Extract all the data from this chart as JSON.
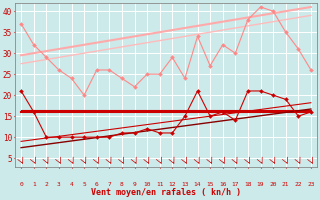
{
  "x": [
    0,
    1,
    2,
    3,
    4,
    5,
    6,
    7,
    8,
    9,
    10,
    11,
    12,
    13,
    14,
    15,
    16,
    17,
    18,
    19,
    20,
    21,
    22,
    23
  ],
  "series": [
    {
      "label": "rafales_data",
      "color": "#ff8888",
      "linewidth": 0.8,
      "marker": "D",
      "markersize": 2.0,
      "values": [
        37,
        32,
        29,
        26,
        24,
        20,
        26,
        26,
        24,
        22,
        25,
        25,
        29,
        24,
        34,
        27,
        32,
        30,
        38,
        41,
        40,
        35,
        31,
        26
      ]
    },
    {
      "label": "rafales_trend_upper",
      "color": "#ffaaaa",
      "linewidth": 1.5,
      "marker": null,
      "values": [
        29.5,
        30.0,
        30.5,
        31.0,
        31.5,
        32.0,
        32.5,
        33.0,
        33.5,
        34.0,
        34.5,
        35.0,
        35.5,
        36.0,
        36.5,
        37.0,
        37.5,
        38.0,
        38.5,
        39.0,
        39.5,
        40.0,
        40.5,
        41.0
      ]
    },
    {
      "label": "rafales_trend_lower",
      "color": "#ffbbbb",
      "linewidth": 1.0,
      "marker": null,
      "values": [
        27.5,
        28.0,
        28.5,
        29.0,
        29.5,
        30.0,
        30.5,
        31.0,
        31.5,
        32.0,
        32.5,
        33.0,
        33.5,
        34.0,
        34.5,
        35.0,
        35.5,
        36.0,
        36.5,
        37.0,
        37.5,
        38.0,
        38.5,
        39.0
      ]
    },
    {
      "label": "vent_flat1",
      "color": "#cc0000",
      "linewidth": 1.5,
      "marker": null,
      "values": [
        16,
        16,
        16,
        16,
        16,
        16,
        16,
        16,
        16,
        16,
        16,
        16,
        16,
        16,
        16,
        16,
        16,
        16,
        16,
        16,
        16,
        16,
        16,
        16
      ]
    },
    {
      "label": "vent_flat2",
      "color": "#cc0000",
      "linewidth": 0.8,
      "marker": null,
      "values": [
        16.5,
        16.5,
        16.5,
        16.5,
        16.5,
        16.5,
        16.5,
        16.5,
        16.5,
        16.5,
        16.5,
        16.5,
        16.5,
        16.5,
        16.5,
        16.5,
        16.5,
        16.5,
        16.5,
        16.5,
        16.5,
        16.5,
        16.5,
        16.5
      ]
    },
    {
      "label": "vent_trend_upper",
      "color": "#cc0000",
      "linewidth": 0.8,
      "marker": null,
      "values": [
        9.0,
        9.4,
        9.8,
        10.2,
        10.6,
        11.0,
        11.4,
        11.8,
        12.2,
        12.6,
        13.0,
        13.4,
        13.8,
        14.2,
        14.6,
        15.0,
        15.4,
        15.8,
        16.2,
        16.6,
        17.0,
        17.4,
        17.8,
        18.2
      ]
    },
    {
      "label": "vent_trend_lower",
      "color": "#880000",
      "linewidth": 1.0,
      "marker": null,
      "values": [
        7.5,
        7.9,
        8.3,
        8.7,
        9.1,
        9.5,
        9.9,
        10.3,
        10.7,
        11.1,
        11.5,
        11.9,
        12.3,
        12.7,
        13.1,
        13.5,
        13.9,
        14.3,
        14.7,
        15.1,
        15.5,
        15.9,
        16.3,
        16.7
      ]
    },
    {
      "label": "vent_data",
      "color": "#cc0000",
      "linewidth": 0.8,
      "marker": "D",
      "markersize": 2.0,
      "values": [
        21,
        16,
        10,
        10,
        10,
        10,
        10,
        10,
        11,
        11,
        12,
        11,
        11,
        15,
        21,
        15,
        16,
        14,
        21,
        21,
        20,
        19,
        15,
        16
      ]
    }
  ],
  "xlabel": "Vent moyen/en rafales ( kn/h )",
  "ylim": [
    3,
    42
  ],
  "yticks": [
    5,
    10,
    15,
    20,
    25,
    30,
    35,
    40
  ],
  "xlim": [
    -0.5,
    23.5
  ],
  "xticks": [
    0,
    1,
    2,
    3,
    4,
    5,
    6,
    7,
    8,
    9,
    10,
    11,
    12,
    13,
    14,
    15,
    16,
    17,
    18,
    19,
    20,
    21,
    22,
    23
  ],
  "bg_color": "#cceaea",
  "grid_color": "#ffffff",
  "text_color": "#cc0000",
  "arrow_color": "#cc0000"
}
